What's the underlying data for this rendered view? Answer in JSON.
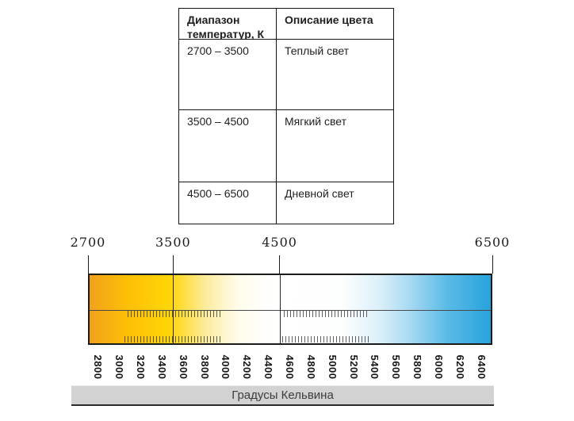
{
  "table": {
    "headers": [
      "Диапазон температур, К",
      "Описание цвета"
    ],
    "rows": [
      {
        "range": "2700 – 3500",
        "description": "Теплый свет"
      },
      {
        "range": "3500 – 4500",
        "description": "Мягкий свет"
      },
      {
        "range": "4500 – 6500",
        "description": "Дневной свет"
      }
    ]
  },
  "scale": {
    "top_labels": [
      2700,
      3500,
      4500,
      6500
    ],
    "divider_lines": [
      3500,
      4500
    ],
    "bottom_labels": [
      2800,
      3000,
      3200,
      3400,
      3600,
      3800,
      4000,
      4200,
      4400,
      4600,
      4800,
      5000,
      5200,
      5400,
      5600,
      5800,
      6000,
      6200,
      6400
    ],
    "unit_label": "Градусы Кельвина",
    "kelvin_min": 2700,
    "kelvin_max": 6500,
    "gradient_stops": [
      {
        "color": "#F2A11B",
        "pos": "0%"
      },
      {
        "color": "#FDBE06",
        "pos": "9%"
      },
      {
        "color": "#FFD606",
        "pos": "20%"
      },
      {
        "color": "#FCEC9E",
        "pos": "29%"
      },
      {
        "color": "#FFFCEC",
        "pos": "37%"
      },
      {
        "color": "#FFFFFF",
        "pos": "46%"
      },
      {
        "color": "#FDFEFE",
        "pos": "63%"
      },
      {
        "color": "#DDF0FA",
        "pos": "72%"
      },
      {
        "color": "#A7D9F2",
        "pos": "80%"
      },
      {
        "color": "#5BBBE7",
        "pos": "89%"
      },
      {
        "color": "#27A3DB",
        "pos": "100%"
      }
    ]
  }
}
